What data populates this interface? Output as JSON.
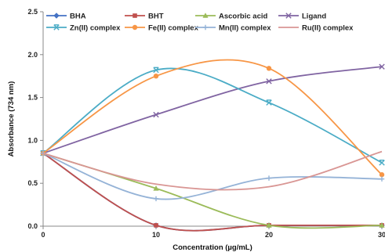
{
  "chart_data": {
    "type": "scatter",
    "title": "",
    "xlabel": "Concentration (µg/mL)",
    "ylabel": "Absorbance (734 nm)",
    "x": [
      0,
      10,
      20,
      30
    ],
    "xlim": [
      0,
      30
    ],
    "ylim": [
      0,
      2.5
    ],
    "xticks": [
      "0",
      "10",
      "20",
      "30"
    ],
    "yticks": [
      "0.0",
      "0.5",
      "1.0",
      "1.5",
      "2.0",
      "2.5"
    ],
    "grid": false,
    "legend_position": "top",
    "series": [
      {
        "name": "BHA",
        "values": [
          0.85,
          0.01,
          0.01,
          0.01
        ],
        "color": "#4472C4",
        "marker": "diamond"
      },
      {
        "name": "BHT",
        "values": [
          0.85,
          0.01,
          0.01,
          0.01
        ],
        "color": "#C0504D",
        "marker": "square"
      },
      {
        "name": "Ascorbic acid",
        "values": [
          0.85,
          0.44,
          0.01,
          0.01
        ],
        "color": "#9BBB59",
        "marker": "triangle"
      },
      {
        "name": "Ligand",
        "values": [
          0.85,
          1.3,
          1.69,
          1.86
        ],
        "color": "#8064A2",
        "marker": "x"
      },
      {
        "name": "Zn(II) complex",
        "values": [
          0.85,
          1.82,
          1.44,
          0.74
        ],
        "color": "#4BACC6",
        "marker": "xbar"
      },
      {
        "name": "Fe(II) complex",
        "values": [
          0.85,
          1.75,
          1.84,
          0.6
        ],
        "color": "#F79646",
        "marker": "circle"
      },
      {
        "name": "Mn(II) complex",
        "values": [
          0.85,
          0.32,
          0.56,
          0.55
        ],
        "color": "#95B3D7",
        "marker": "plus"
      },
      {
        "name": "Ru(II) complex",
        "values": [
          0.85,
          0.49,
          0.46,
          0.87
        ],
        "color": "#D99694",
        "marker": "none"
      }
    ]
  }
}
